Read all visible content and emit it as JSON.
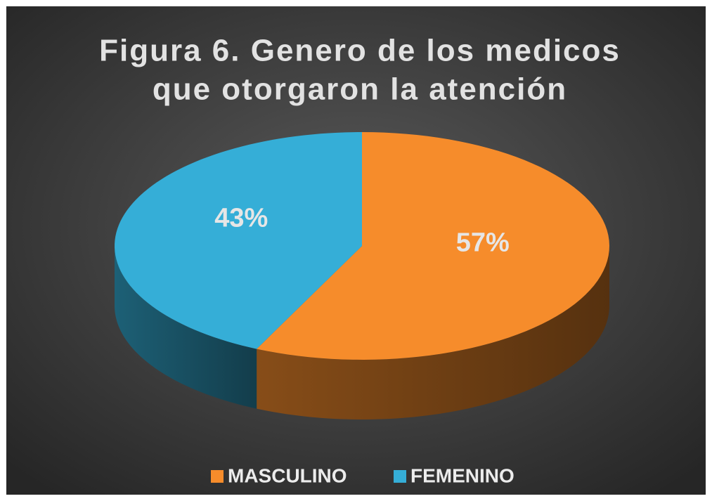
{
  "chart_data": {
    "type": "pie3d",
    "title": [
      "Figura 6. Genero de los medicos",
      "que otorgaron la atención"
    ],
    "categories": [
      "MASCULINO",
      "FEMENINO"
    ],
    "values": [
      57,
      43
    ],
    "value_labels": [
      "57%",
      "43%"
    ],
    "colors": [
      "#f68c2b",
      "#35aed7"
    ],
    "legend": "bottom"
  }
}
